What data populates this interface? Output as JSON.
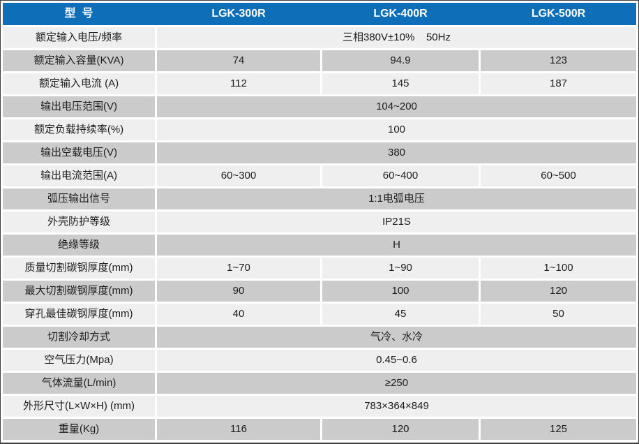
{
  "colors": {
    "header_bg": "#0e6fb8",
    "header_text": "#ffffff",
    "row_light": "#efefef",
    "row_gray": "#cbcbcb",
    "text": "#1c1c1c",
    "outer_border": "#3e3e3e"
  },
  "header": {
    "model_label": "型  号",
    "models": [
      "LGK-300R",
      "LGK-400R",
      "LGK-500R"
    ]
  },
  "rows": [
    {
      "label": "额定输入电压/频率",
      "span": "三相380V±10%    50Hz"
    },
    {
      "label": "额定输入容量(KVA)",
      "values": [
        "74",
        "94.9",
        "123"
      ]
    },
    {
      "label": "额定输入电流 (A)",
      "values": [
        "112",
        "145",
        "187"
      ]
    },
    {
      "label": "输出电压范围(V)",
      "span": "104~200"
    },
    {
      "label": "额定负载持续率(%)",
      "span": "100"
    },
    {
      "label": "输出空载电压(V)",
      "span": "380"
    },
    {
      "label": "输出电流范围(A)",
      "values": [
        "60~300",
        "60~400",
        "60~500"
      ]
    },
    {
      "label": "弧压输出信号",
      "span": "1:1电弧电压"
    },
    {
      "label": "外壳防护等级",
      "span": "IP21S"
    },
    {
      "label": "绝缘等级",
      "span": "H"
    },
    {
      "label": "质量切割碳钢厚度(mm)",
      "values": [
        "1~70",
        "1~90",
        "1~100"
      ]
    },
    {
      "label": "最大切割碳钢厚度(mm)",
      "values": [
        "90",
        "100",
        "120"
      ]
    },
    {
      "label": "穿孔最佳碳钢厚度(mm)",
      "values": [
        "40",
        "45",
        "50"
      ]
    },
    {
      "label": "切割冷却方式",
      "span": "气冷、水冷"
    },
    {
      "label": "空气压力(Mpa)",
      "span": "0.45~0.6"
    },
    {
      "label": "气体流量(L/min)",
      "span": "≥250"
    },
    {
      "label": "外形尺寸(L×W×H) (mm)",
      "span": "783×364×849"
    },
    {
      "label": "重量(Kg)",
      "values": [
        "116",
        "120",
        "125"
      ]
    }
  ]
}
